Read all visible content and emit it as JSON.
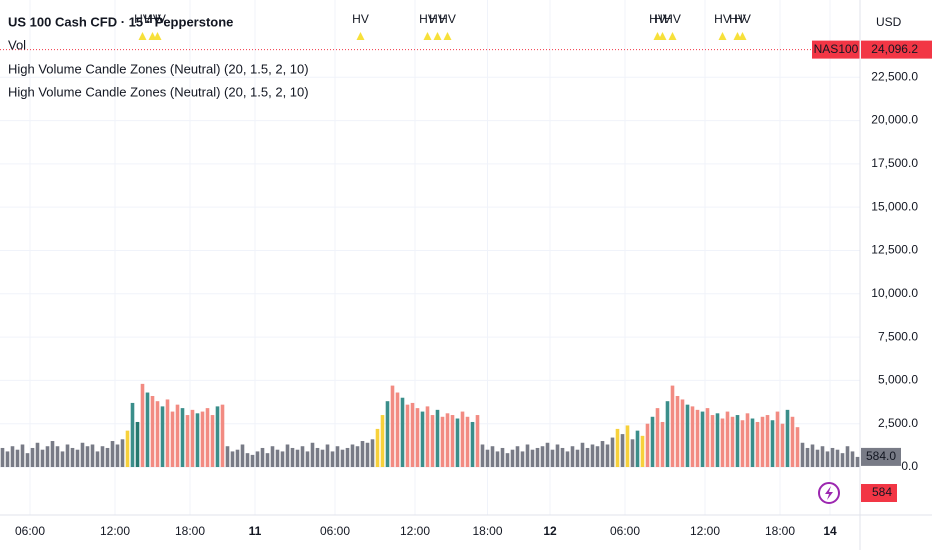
{
  "chart_data": {
    "type": "bar",
    "title": "US 100 Cash CFD · 15 · Pepperstone",
    "legend_lines": [
      "Vol",
      "High Volume Candle Zones (Neutral) (20, 1.5, 2, 10)",
      "High Volume Candle Zones (Neutral) (20, 1.5, 2, 10)"
    ],
    "currency": "USD",
    "symbol": "NAS100",
    "last_price": {
      "value": 24096.2,
      "label": "24,096.2"
    },
    "last_volume": {
      "value": 584,
      "label": "584.0"
    },
    "last_volume_short": 584,
    "values": [
      1100,
      900,
      1200,
      1000,
      1300,
      800,
      1100,
      1400,
      1000,
      1200,
      1500,
      1200,
      900,
      1300,
      1100,
      1000,
      1400,
      1200,
      1300,
      900,
      1200,
      1100,
      1500,
      1300,
      1600,
      2100,
      3700,
      2600,
      4800,
      4300,
      4100,
      3800,
      3500,
      3900,
      3200,
      3600,
      3400,
      3000,
      3300,
      3100,
      3200,
      3400,
      3000,
      3500,
      3600,
      1200,
      900,
      1000,
      1300,
      800,
      700,
      900,
      1100,
      800,
      1200,
      1000,
      900,
      1300,
      1100,
      1000,
      1200,
      900,
      1400,
      1100,
      1000,
      1300,
      900,
      1200,
      1000,
      1100,
      1300,
      1200,
      1500,
      1400,
      1600,
      2200,
      3000,
      3800,
      4700,
      4300,
      4000,
      3600,
      3700,
      3400,
      3200,
      3500,
      3000,
      3300,
      2900,
      3100,
      3000,
      2800,
      3200,
      2900,
      2600,
      3000,
      1300,
      1000,
      1200,
      900,
      1100,
      800,
      1000,
      1200,
      900,
      1300,
      1000,
      1100,
      1200,
      1400,
      1000,
      1300,
      1100,
      900,
      1200,
      1000,
      1400,
      1100,
      1300,
      1200,
      1500,
      1300,
      1700,
      2200,
      1900,
      2400,
      1600,
      2100,
      1800,
      2500,
      2900,
      3400,
      2600,
      3800,
      4700,
      4100,
      3900,
      3600,
      3500,
      3300,
      3200,
      3400,
      3000,
      3100,
      2800,
      3200,
      2900,
      3000,
      2700,
      3100,
      2800,
      2600,
      2900,
      3000,
      2700,
      3200,
      2500,
      3300,
      2900,
      2300,
      1400,
      1100,
      1300,
      1000,
      1200,
      900,
      1100,
      1000,
      800,
      1200,
      900,
      584
    ],
    "bar_color_keys": "gggggggggggggggggggggggggytdrtrrtrrrtrrtrrrtrggggggggggggggggggggggggggggggyytrrtrrrtrrtrrrtrrtrgggggggggggggggggggggggggggygygtyrtrrtrrrtrrtrrtrrrtrrtrrrtrrtrrgggggggggggg",
    "palette": {
      "g": "#787b86",
      "r": "#f28b82",
      "t": "#3a8e8a",
      "d": "#26786f",
      "y": "#f7d13b"
    },
    "hv_markers": {
      "label": "HV",
      "x": [
        28,
        30,
        31,
        71.6,
        85,
        87,
        89,
        131,
        132,
        134,
        144,
        147,
        148
      ],
      "color": "#f7e03a",
      "text_color": "#2962ff"
    },
    "xlim": [
      0,
      172
    ],
    "xticks": [
      {
        "value": 6,
        "label": "06:00"
      },
      {
        "value": 23,
        "label": "12:00"
      },
      {
        "value": 38,
        "label": "18:00"
      },
      {
        "value": 51,
        "label": "11"
      },
      {
        "value": 67,
        "label": "06:00"
      },
      {
        "value": 83,
        "label": "12:00"
      },
      {
        "value": 97.5,
        "label": "18:00"
      },
      {
        "value": 110,
        "label": "12"
      },
      {
        "value": 125,
        "label": "06:00"
      },
      {
        "value": 141,
        "label": "12:00"
      },
      {
        "value": 156,
        "label": "18:00"
      },
      {
        "value": 166,
        "label": "14"
      }
    ],
    "ylim": [
      -2770,
      26960
    ],
    "yticks": [
      {
        "value": 0,
        "label": "0.0"
      },
      {
        "value": 2500,
        "label": "2,500.0"
      },
      {
        "value": 5000,
        "label": "5,000.0"
      },
      {
        "value": 7500,
        "label": "7,500.0"
      },
      {
        "value": 10000,
        "label": "10,000.0"
      },
      {
        "value": 12500,
        "label": "12,500.0"
      },
      {
        "value": 15000,
        "label": "15,000.0"
      },
      {
        "value": 17500,
        "label": "17,500.0"
      },
      {
        "value": 20000,
        "label": "20,000.0"
      },
      {
        "value": 22500,
        "label": "22,500.0"
      }
    ],
    "grid": true
  }
}
